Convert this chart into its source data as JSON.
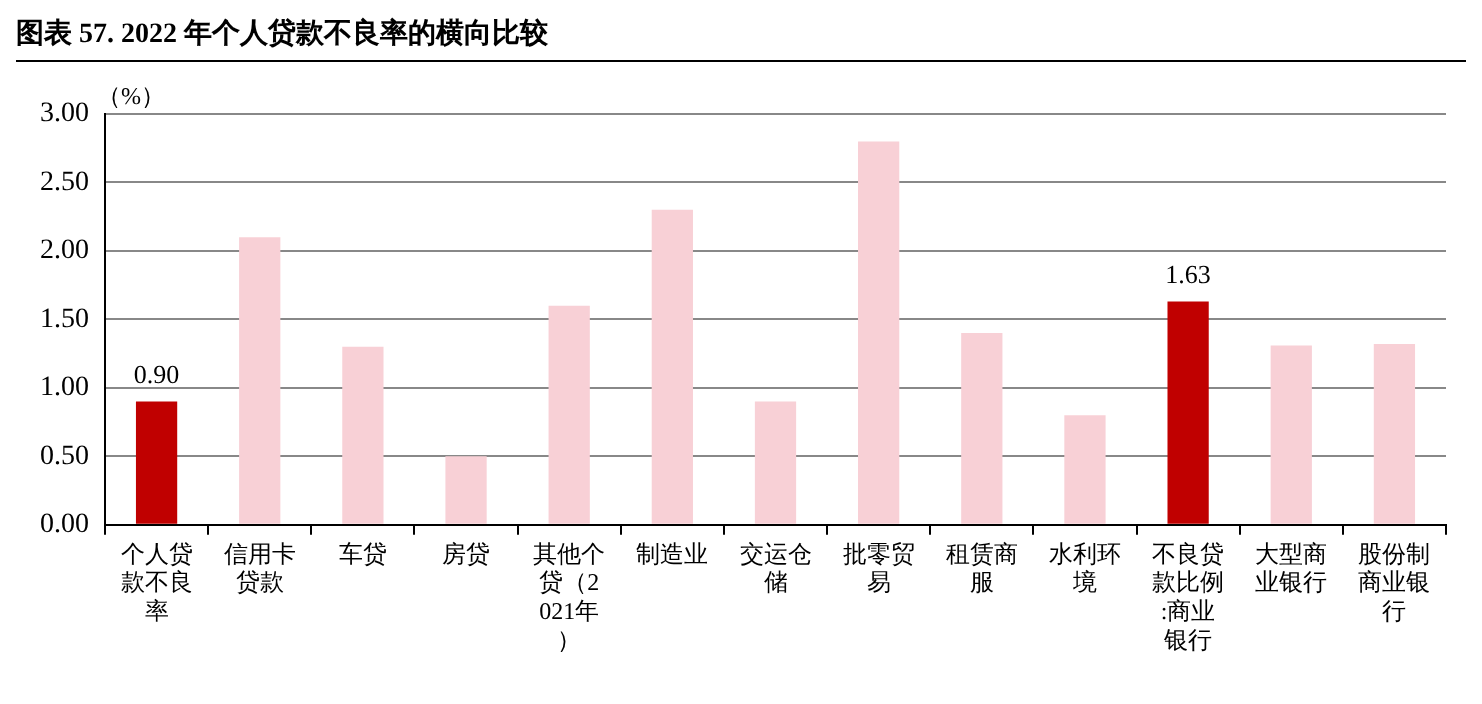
{
  "chart_data": {
    "type": "bar",
    "title": "图表 57. 2022 年个人贷款不良率的横向比较",
    "ylabel": "（%）",
    "categories": [
      "个人贷款不良率",
      "信用卡贷款",
      "车贷",
      "房贷",
      "其他个贷（2021年）",
      "制造业",
      "交运仓储",
      "批零贸易",
      "租赁商服",
      "水利环境",
      "不良贷款比例:商业银行",
      "大型商业银行",
      "股份制商业银行"
    ],
    "values": [
      0.9,
      2.1,
      1.3,
      0.5,
      1.6,
      2.3,
      0.9,
      2.8,
      1.4,
      0.8,
      1.63,
      1.31,
      1.32
    ],
    "colors": [
      "#c00000",
      "#f8d0d6",
      "#f8d0d6",
      "#f8d0d6",
      "#f8d0d6",
      "#f8d0d6",
      "#f8d0d6",
      "#f8d0d6",
      "#f8d0d6",
      "#f8d0d6",
      "#c00000",
      "#f8d0d6",
      "#f8d0d6"
    ],
    "value_labels": [
      "0.90",
      null,
      null,
      null,
      null,
      null,
      null,
      null,
      null,
      null,
      "1.63",
      null,
      null
    ],
    "ylim": [
      0,
      3
    ],
    "yticks": [
      {
        "value": 0,
        "label": "0.00"
      },
      {
        "value": 0.5,
        "label": "0.50"
      },
      {
        "value": 1,
        "label": "1.00"
      },
      {
        "value": 1.5,
        "label": "1.50"
      },
      {
        "value": 2,
        "label": "2.00"
      },
      {
        "value": 2.5,
        "label": "2.50"
      },
      {
        "value": 3,
        "label": "3.00"
      }
    ],
    "grid": "y",
    "legend": false
  }
}
